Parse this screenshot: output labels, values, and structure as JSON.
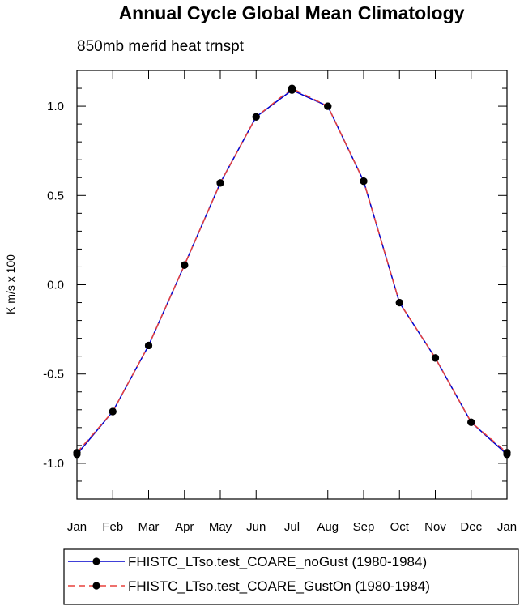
{
  "chart_data": {
    "type": "line",
    "title": "Annual Cycle Global Mean Climatology",
    "subtitle": "850mb merid heat trnspt",
    "ylabel": "K m/s x 100",
    "xlabel": "",
    "categories": [
      "Jan",
      "Feb",
      "Mar",
      "Apr",
      "May",
      "Jun",
      "Jul",
      "Aug",
      "Sep",
      "Oct",
      "Nov",
      "Dec",
      "Jan"
    ],
    "ylim": [
      -1.2,
      1.2
    ],
    "yticks": [
      "-1.0",
      "-0.5",
      "0.0",
      "0.5",
      "1.0"
    ],
    "ytick_values": [
      -1.0,
      -0.5,
      0.0,
      0.5,
      1.0
    ],
    "grid": false,
    "legend_position": "bottom",
    "series": [
      {
        "name": "FHISTC_LTso.test_COARE_noGust (1980-1984)",
        "color": "#0000cc",
        "dash": "solid",
        "marker": "filled-circle",
        "values": [
          -0.95,
          -0.71,
          -0.34,
          0.11,
          0.57,
          0.94,
          1.09,
          1.0,
          0.58,
          -0.1,
          -0.41,
          -0.77,
          -0.95
        ]
      },
      {
        "name": "FHISTC_LTso.test_COARE_GustOn (1980-1984)",
        "color": "#e8403c",
        "dash": "dashed",
        "marker": "filled-circle",
        "values": [
          -0.94,
          -0.71,
          -0.34,
          0.11,
          0.57,
          0.94,
          1.1,
          1.0,
          0.58,
          -0.1,
          -0.41,
          -0.77,
          -0.94
        ]
      }
    ]
  }
}
